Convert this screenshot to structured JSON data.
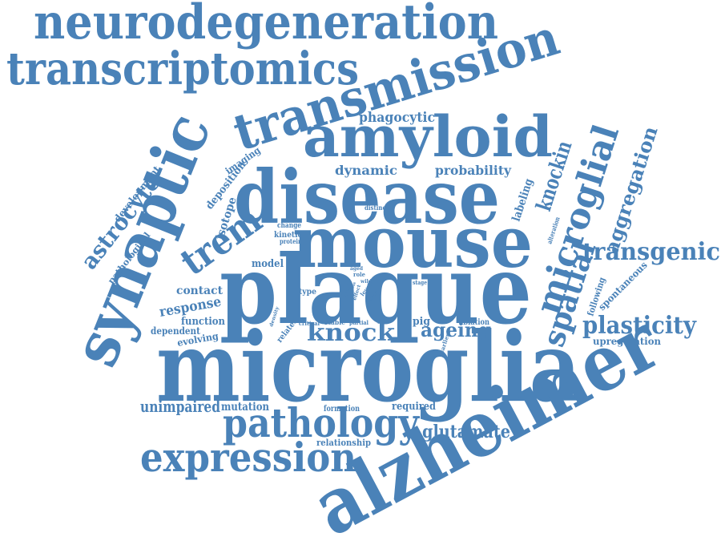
{
  "word_color": "#4a82b8",
  "words": [
    {
      "id": "neurodegeneration",
      "text": "neurodegeneration"
    },
    {
      "id": "transcriptomics",
      "text": "transcriptomics"
    },
    {
      "id": "transmission",
      "text": "transmission"
    },
    {
      "id": "synaptic",
      "text": "synaptic"
    },
    {
      "id": "amyloid",
      "text": "amyloid"
    },
    {
      "id": "disease",
      "text": "disease"
    },
    {
      "id": "mouse",
      "text": "mouse"
    },
    {
      "id": "plaque",
      "text": "plaque"
    },
    {
      "id": "microglia",
      "text": "microglia"
    },
    {
      "id": "alzheimer",
      "text": "alzheimer"
    },
    {
      "id": "microglial",
      "text": "microglial"
    },
    {
      "id": "spatial",
      "text": "spatial"
    },
    {
      "id": "pathology",
      "text": "pathology"
    },
    {
      "id": "expression",
      "text": "expression"
    },
    {
      "id": "trem",
      "text": "trem"
    },
    {
      "id": "knock",
      "text": "knock"
    },
    {
      "id": "knockin",
      "text": "knockin"
    },
    {
      "id": "transgenic",
      "text": "transgenic"
    },
    {
      "id": "plasticity",
      "text": "plasticity"
    },
    {
      "id": "aggregation",
      "text": "aggregation"
    },
    {
      "id": "astrocyte",
      "text": "astrocyte"
    },
    {
      "id": "ageing",
      "text": "ageing"
    },
    {
      "id": "glutamate",
      "text": "glutamate"
    },
    {
      "id": "unimpaired",
      "text": "unimpaired"
    },
    {
      "id": "phagocytic",
      "text": "phagocytic"
    },
    {
      "id": "dynamic",
      "text": "dynamic"
    },
    {
      "id": "probability",
      "text": "probability"
    },
    {
      "id": "labeling",
      "text": "labeling"
    },
    {
      "id": "development",
      "text": "development"
    },
    {
      "id": "pathological",
      "text": "pathological"
    },
    {
      "id": "imaging",
      "text": "imaging"
    },
    {
      "id": "deposition",
      "text": "deposition"
    },
    {
      "id": "isotope",
      "text": "isotope"
    },
    {
      "id": "response",
      "text": "response"
    },
    {
      "id": "contact",
      "text": "contact"
    },
    {
      "id": "model",
      "text": "model"
    },
    {
      "id": "function",
      "text": "function"
    },
    {
      "id": "dependent",
      "text": "dependent"
    },
    {
      "id": "evolving",
      "text": "evolving"
    },
    {
      "id": "mutation",
      "text": "mutation"
    },
    {
      "id": "required",
      "text": "required"
    },
    {
      "id": "upregulation",
      "text": "upregulation"
    },
    {
      "id": "spontaneous",
      "text": "spontaneous"
    },
    {
      "id": "following",
      "text": "following"
    },
    {
      "id": "relationship",
      "text": "relationship"
    },
    {
      "id": "formation",
      "text": "formation"
    },
    {
      "id": "pig",
      "text": "pig"
    },
    {
      "id": "ablation",
      "text": "ablation"
    },
    {
      "id": "type",
      "text": "type"
    },
    {
      "id": "kinetic",
      "text": "kinetic"
    },
    {
      "id": "change",
      "text": "change"
    },
    {
      "id": "protein",
      "text": "protein"
    },
    {
      "id": "distinct",
      "text": "distinct"
    },
    {
      "id": "alteration",
      "text": "alteration"
    },
    {
      "id": "related",
      "text": "related"
    },
    {
      "id": "critical",
      "text": "critical"
    },
    {
      "id": "stable",
      "text": "stable"
    },
    {
      "id": "partial",
      "text": "partial"
    },
    {
      "id": "event",
      "text": "event"
    },
    {
      "id": "level",
      "text": "level"
    },
    {
      "id": "result",
      "text": "result"
    },
    {
      "id": "density",
      "text": "density"
    },
    {
      "id": "earliest",
      "text": "earliest"
    },
    {
      "id": "stage",
      "text": "stage"
    },
    {
      "id": "aged",
      "text": "aged"
    },
    {
      "id": "role",
      "text": "role"
    },
    {
      "id": "wild",
      "text": "wild"
    },
    {
      "id": "effect",
      "text": "effect"
    },
    {
      "id": "loss",
      "text": "loss"
    }
  ]
}
